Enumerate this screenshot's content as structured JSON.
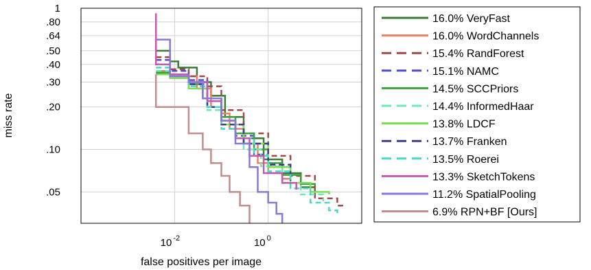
{
  "chart_data": {
    "type": "line",
    "xlabel": "false positives per image",
    "ylabel": "miss rate",
    "x_scale": "log",
    "y_scale": "log",
    "xlim": [
      0.0001,
      100
    ],
    "ylim": [
      0.03,
      1
    ],
    "grid": true,
    "legend_position": "right",
    "x_ticks": [
      {
        "value": 0.01,
        "base": "10",
        "exp": "-2"
      },
      {
        "value": 1,
        "base": "10",
        "exp": "0"
      }
    ],
    "y_ticks": [
      {
        "value": 1,
        "label": "1"
      },
      {
        "value": 0.8,
        "label": ".80"
      },
      {
        "value": 0.64,
        "label": ".64"
      },
      {
        "value": 0.5,
        "label": ".50"
      },
      {
        "value": 0.4,
        "label": ".40"
      },
      {
        "value": 0.3,
        "label": ".30"
      },
      {
        "value": 0.2,
        "label": ".20"
      },
      {
        "value": 0.1,
        "label": ".10"
      },
      {
        "value": 0.05,
        "label": ".05"
      }
    ],
    "series": [
      {
        "name": "16.0% VeryFast",
        "color": "#3a7a3a",
        "dash": false,
        "points": [
          [
            0.004,
            0.5
          ],
          [
            0.008,
            0.5
          ],
          [
            0.008,
            0.42
          ],
          [
            0.012,
            0.42
          ],
          [
            0.012,
            0.38
          ],
          [
            0.03,
            0.3
          ],
          [
            0.06,
            0.24
          ],
          [
            0.12,
            0.17
          ],
          [
            0.3,
            0.12
          ],
          [
            0.8,
            0.085
          ],
          [
            2,
            0.068
          ],
          [
            5,
            0.054
          ],
          [
            10,
            0.05
          ]
        ]
      },
      {
        "name": "16.0% WordChannels",
        "color": "#e8806a",
        "dash": false,
        "points": [
          [
            0.004,
            0.36
          ],
          [
            0.008,
            0.36
          ],
          [
            0.008,
            0.33
          ],
          [
            0.03,
            0.27
          ],
          [
            0.06,
            0.2
          ],
          [
            0.1,
            0.18
          ],
          [
            0.15,
            0.14
          ],
          [
            0.3,
            0.11
          ],
          [
            0.6,
            0.08
          ],
          [
            1,
            0.068
          ],
          [
            2,
            0.062
          ],
          [
            3,
            0.06
          ]
        ]
      },
      {
        "name": "15.4% RandForest",
        "color": "#a04848",
        "dash": true,
        "points": [
          [
            0.004,
            0.45
          ],
          [
            0.008,
            0.45
          ],
          [
            0.008,
            0.37
          ],
          [
            0.02,
            0.33
          ],
          [
            0.05,
            0.28
          ],
          [
            0.1,
            0.19
          ],
          [
            0.3,
            0.13
          ],
          [
            1,
            0.09
          ],
          [
            3,
            0.065
          ],
          [
            10,
            0.045
          ],
          [
            30,
            0.04
          ],
          [
            40,
            0.04
          ]
        ]
      },
      {
        "name": "15.1% NAMC",
        "color": "#4e4ecc",
        "dash": true,
        "points": [
          [
            0.004,
            0.43
          ],
          [
            0.008,
            0.43
          ],
          [
            0.008,
            0.36
          ],
          [
            0.02,
            0.31
          ],
          [
            0.05,
            0.22
          ],
          [
            0.1,
            0.16
          ],
          [
            0.2,
            0.125
          ],
          [
            0.5,
            0.092
          ],
          [
            1,
            0.075
          ],
          [
            3,
            0.06
          ]
        ]
      },
      {
        "name": "14.5% SCCPriors",
        "color": "#3ca03c",
        "dash": false,
        "points": [
          [
            0.004,
            0.35
          ],
          [
            0.008,
            0.35
          ],
          [
            0.008,
            0.32
          ],
          [
            0.02,
            0.29
          ],
          [
            0.04,
            0.23
          ],
          [
            0.1,
            0.17
          ],
          [
            0.2,
            0.13
          ],
          [
            0.5,
            0.1
          ],
          [
            1,
            0.08
          ],
          [
            2,
            0.066
          ],
          [
            5,
            0.057
          ],
          [
            10,
            0.055
          ]
        ]
      },
      {
        "name": "14.4% InformedHaar",
        "color": "#6ee8b4",
        "dash": true,
        "points": [
          [
            0.004,
            0.36
          ],
          [
            0.008,
            0.36
          ],
          [
            0.008,
            0.34
          ],
          [
            0.02,
            0.3
          ],
          [
            0.05,
            0.19
          ],
          [
            0.1,
            0.15
          ],
          [
            0.3,
            0.1
          ],
          [
            0.7,
            0.076
          ],
          [
            2,
            0.058
          ],
          [
            5,
            0.048
          ],
          [
            15,
            0.043
          ]
        ]
      },
      {
        "name": "13.8% LDCF",
        "color": "#78e050",
        "dash": false,
        "points": [
          [
            0.004,
            0.34
          ],
          [
            0.008,
            0.34
          ],
          [
            0.008,
            0.32
          ],
          [
            0.02,
            0.27
          ],
          [
            0.05,
            0.2
          ],
          [
            0.1,
            0.15
          ],
          [
            0.3,
            0.11
          ],
          [
            1,
            0.075
          ],
          [
            3,
            0.058
          ],
          [
            8,
            0.05
          ],
          [
            20,
            0.048
          ]
        ]
      },
      {
        "name": "13.7% Franken",
        "color": "#3c3c8e",
        "dash": true,
        "points": [
          [
            0.004,
            0.4
          ],
          [
            0.008,
            0.4
          ],
          [
            0.008,
            0.34
          ],
          [
            0.02,
            0.29
          ],
          [
            0.05,
            0.2
          ],
          [
            0.1,
            0.15
          ],
          [
            0.3,
            0.11
          ],
          [
            1,
            0.078
          ],
          [
            3,
            0.06
          ]
        ]
      },
      {
        "name": "13.5% Roerei",
        "color": "#48d8c8",
        "dash": true,
        "points": [
          [
            0.004,
            0.38
          ],
          [
            0.008,
            0.38
          ],
          [
            0.008,
            0.34
          ],
          [
            0.02,
            0.28
          ],
          [
            0.05,
            0.2
          ],
          [
            0.1,
            0.14
          ],
          [
            0.2,
            0.12
          ],
          [
            0.5,
            0.09
          ],
          [
            1,
            0.07
          ],
          [
            3,
            0.053
          ],
          [
            8,
            0.042
          ],
          [
            20,
            0.037
          ],
          [
            30,
            0.035
          ]
        ]
      },
      {
        "name": "13.3% SketchTokens",
        "color": "#c05aac",
        "dash": false,
        "points": [
          [
            0.004,
            0.92
          ],
          [
            0.004,
            0.4
          ],
          [
            0.008,
            0.4
          ],
          [
            0.008,
            0.34
          ],
          [
            0.02,
            0.3
          ],
          [
            0.05,
            0.22
          ],
          [
            0.1,
            0.16
          ],
          [
            0.2,
            0.12
          ],
          [
            0.4,
            0.09
          ],
          [
            0.8,
            0.068
          ],
          [
            2,
            0.058
          ],
          [
            4,
            0.052
          ]
        ]
      },
      {
        "name": "11.2% SpatialPooling",
        "color": "#8a78d8",
        "dash": false,
        "points": [
          [
            0.004,
            0.6
          ],
          [
            0.008,
            0.6
          ],
          [
            0.008,
            0.33
          ],
          [
            0.02,
            0.3
          ],
          [
            0.04,
            0.23
          ],
          [
            0.1,
            0.16
          ],
          [
            0.2,
            0.11
          ],
          [
            0.4,
            0.075
          ],
          [
            0.6,
            0.05
          ],
          [
            1,
            0.042
          ],
          [
            1.5,
            0.035
          ],
          [
            2,
            0.03
          ]
        ]
      },
      {
        "name": "6.9% RPN+BF [Ours]",
        "color": "#c08c8c",
        "dash": false,
        "points": [
          [
            0.004,
            0.34
          ],
          [
            0.004,
            0.2
          ],
          [
            0.01,
            0.2
          ],
          [
            0.02,
            0.13
          ],
          [
            0.04,
            0.1
          ],
          [
            0.06,
            0.08
          ],
          [
            0.1,
            0.065
          ],
          [
            0.15,
            0.05
          ],
          [
            0.25,
            0.04
          ],
          [
            0.4,
            0.03
          ]
        ]
      }
    ]
  }
}
